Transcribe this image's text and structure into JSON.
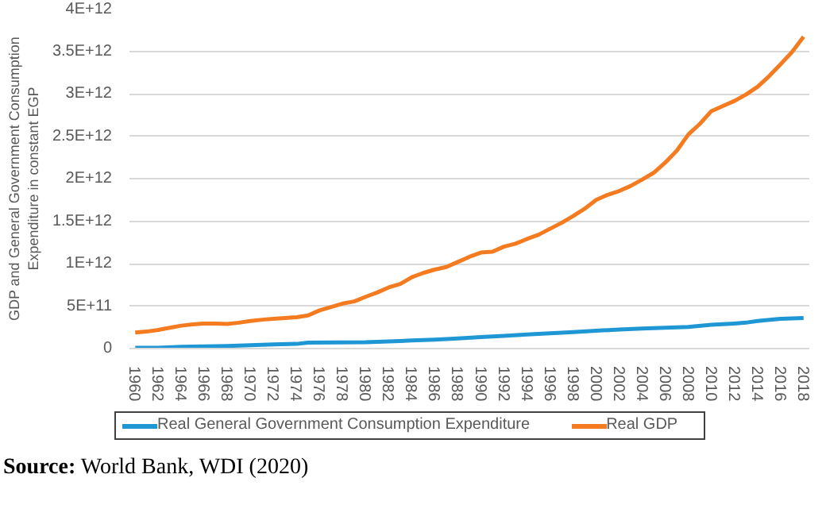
{
  "chart_data": {
    "type": "line",
    "ylabel": "GDP and General Government Consumption Expenditure in constant EGP",
    "x": [
      1960,
      1961,
      1962,
      1963,
      1964,
      1965,
      1966,
      1967,
      1968,
      1969,
      1970,
      1971,
      1972,
      1973,
      1974,
      1975,
      1976,
      1977,
      1978,
      1979,
      1980,
      1981,
      1982,
      1983,
      1984,
      1985,
      1986,
      1987,
      1988,
      1989,
      1990,
      1991,
      1992,
      1993,
      1994,
      1995,
      1996,
      1997,
      1998,
      1999,
      2000,
      2001,
      2002,
      2003,
      2004,
      2005,
      2006,
      2007,
      2008,
      2009,
      2010,
      2011,
      2012,
      2013,
      2014,
      2015,
      2016,
      2017,
      2018
    ],
    "series": [
      {
        "name": "Real General Government Consumption Expenditure",
        "color": "#1f97d4",
        "x": [
          1960,
          1962,
          1964,
          1966,
          1968,
          1970,
          1972,
          1974,
          1975,
          1980,
          1982,
          1984,
          1986,
          1988,
          1990,
          1992,
          1994,
          1996,
          1998,
          2000,
          2002,
          2004,
          2006,
          2008,
          2010,
          2012,
          2013,
          2014,
          2016,
          2018
        ],
        "values": [
          10000000000.0,
          10000000000.0,
          20000000000.0,
          25000000000.0,
          30000000000.0,
          40000000000.0,
          50000000000.0,
          55000000000.0,
          70000000000.0,
          75000000000.0,
          85000000000.0,
          95000000000.0,
          105000000000.0,
          120000000000.0,
          135000000000.0,
          150000000000.0,
          165000000000.0,
          180000000000.0,
          195000000000.0,
          210000000000.0,
          225000000000.0,
          235000000000.0,
          245000000000.0,
          255000000000.0,
          280000000000.0,
          295000000000.0,
          305000000000.0,
          325000000000.0,
          350000000000.0,
          360000000000.0
        ]
      },
      {
        "name": "Real GDP",
        "color": "#f47b20",
        "values": [
          190000000000.0,
          200000000000.0,
          220000000000.0,
          245000000000.0,
          270000000000.0,
          285000000000.0,
          295000000000.0,
          295000000000.0,
          290000000000.0,
          305000000000.0,
          325000000000.0,
          340000000000.0,
          350000000000.0,
          360000000000.0,
          370000000000.0,
          390000000000.0,
          450000000000.0,
          490000000000.0,
          530000000000.0,
          555000000000.0,
          610000000000.0,
          660000000000.0,
          720000000000.0,
          760000000000.0,
          840000000000.0,
          890000000000.0,
          930000000000.0,
          960000000000.0,
          1020000000000.0,
          1080000000000.0,
          1130000000000.0,
          1140000000000.0,
          1200000000000.0,
          1235000000000.0,
          1290000000000.0,
          1340000000000.0,
          1410000000000.0,
          1480000000000.0,
          1560000000000.0,
          1645000000000.0,
          1750000000000.0,
          1810000000000.0,
          1855000000000.0,
          1915000000000.0,
          1990000000000.0,
          2070000000000.0,
          2190000000000.0,
          2330000000000.0,
          2520000000000.0,
          2645000000000.0,
          2795000000000.0,
          2855000000000.0,
          2915000000000.0,
          2990000000000.0,
          3080000000000.0,
          3205000000000.0,
          3345000000000.0,
          3490000000000.0,
          3670000000000.0
        ]
      }
    ],
    "xlim": [
      1959.5,
      2018.5
    ],
    "xticks": [
      1960,
      1962,
      1964,
      1966,
      1968,
      1970,
      1972,
      1974,
      1976,
      1978,
      1980,
      1982,
      1984,
      1986,
      1988,
      1990,
      1992,
      1994,
      1996,
      1998,
      2000,
      2002,
      2004,
      2006,
      2008,
      2010,
      2012,
      2014,
      2016,
      2018
    ],
    "ylim": [
      0,
      4000000000000.0
    ],
    "yticks": [
      {
        "value": 0,
        "label": "0"
      },
      {
        "value": 500000000000.0,
        "label": "5E+11"
      },
      {
        "value": 1000000000000.0,
        "label": "1E+12"
      },
      {
        "value": 1500000000000.0,
        "label": "1.5E+12"
      },
      {
        "value": 2000000000000.0,
        "label": "2E+12"
      },
      {
        "value": 2500000000000.0,
        "label": "2.5E+12"
      },
      {
        "value": 3000000000000.0,
        "label": "3E+12"
      },
      {
        "value": 3500000000000.0,
        "label": "3.5E+12"
      },
      {
        "value": 4000000000000.0,
        "label": "4E+12"
      }
    ],
    "grid": "y",
    "legend": "bottom",
    "marker": "none",
    "line_style": "solid",
    "annotations": [
      "Source: World Bank, WDI (2020)"
    ]
  }
}
